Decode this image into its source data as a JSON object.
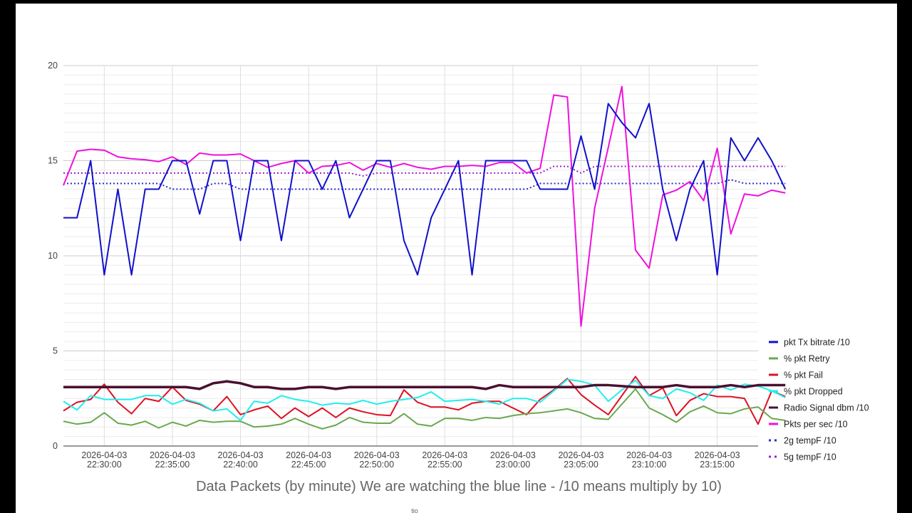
{
  "chart_data": {
    "type": "line",
    "title": "",
    "caption": "Data Packets  (by minute) We are watching the blue line -  /10 means multiply by 10)",
    "footer_text": "tio",
    "xlabel": "",
    "ylabel": "",
    "ylim": [
      0,
      20
    ],
    "yticks": [
      0,
      5,
      10,
      15,
      20
    ],
    "xlim": [
      0,
      51
    ],
    "x_ticks": [
      {
        "x": 3,
        "date": "2026-04-03",
        "time": "22:30:00"
      },
      {
        "x": 8,
        "date": "2026-04-03",
        "time": "22:35:00"
      },
      {
        "x": 13,
        "date": "2026-04-03",
        "time": "22:40:00"
      },
      {
        "x": 18,
        "date": "2026-04-03",
        "time": "22:45:00"
      },
      {
        "x": 23,
        "date": "2026-04-03",
        "time": "22:50:00"
      },
      {
        "x": 28,
        "date": "2026-04-03",
        "time": "22:55:00"
      },
      {
        "x": 33,
        "date": "2026-04-03",
        "time": "23:00:00"
      },
      {
        "x": 38,
        "date": "2026-04-03",
        "time": "23:05:00"
      },
      {
        "x": 43,
        "date": "2026-04-03",
        "time": "23:10:00"
      },
      {
        "x": 48,
        "date": "2026-04-03",
        "time": "23:15:00"
      }
    ],
    "grid": true,
    "legend_position": "right",
    "series": [
      {
        "name": "pkt Tx bitrate /10",
        "color": "#1010cc",
        "style": "solid",
        "width": 2,
        "values": [
          12,
          12,
          15,
          9,
          13.5,
          9,
          13.5,
          13.5,
          15,
          15,
          12.2,
          15,
          15,
          10.8,
          15,
          15,
          10.8,
          15,
          15,
          13.5,
          15,
          12,
          13.5,
          15,
          15,
          10.8,
          9,
          12,
          13.5,
          15,
          9,
          15,
          15,
          15,
          15,
          13.5,
          13.5,
          13.5,
          16.3,
          13.5,
          18,
          17,
          16.2,
          18,
          13.5,
          10.8,
          13.5,
          15,
          9,
          16.2,
          15,
          16.2,
          15,
          13.5
        ]
      },
      {
        "name": "% pkt Retry",
        "color": "#6aa84f",
        "style": "solid",
        "width": 2,
        "values": [
          1.3,
          1.15,
          1.25,
          1.75,
          1.2,
          1.1,
          1.3,
          0.95,
          1.25,
          1.05,
          1.35,
          1.25,
          1.3,
          1.3,
          1.0,
          1.05,
          1.15,
          1.45,
          1.15,
          0.9,
          1.1,
          1.5,
          1.25,
          1.2,
          1.2,
          1.7,
          1.15,
          1.05,
          1.45,
          1.45,
          1.35,
          1.5,
          1.45,
          1.6,
          1.7,
          1.75,
          1.85,
          1.95,
          1.75,
          1.45,
          1.4,
          2.2,
          3.0,
          2.0,
          1.65,
          1.25,
          1.8,
          2.1,
          1.75,
          1.7,
          1.95,
          2.05,
          1.45,
          1.35
        ]
      },
      {
        "name": "% pkt Fail",
        "color": "#dd1122",
        "style": "solid",
        "width": 2,
        "values": [
          1.85,
          2.3,
          2.45,
          3.25,
          2.3,
          1.7,
          2.5,
          2.35,
          3.1,
          2.4,
          2.2,
          1.85,
          2.6,
          1.65,
          1.9,
          2.1,
          1.45,
          2.0,
          1.55,
          2.0,
          1.5,
          2.0,
          1.8,
          1.65,
          1.6,
          2.95,
          2.3,
          2.05,
          2.05,
          1.9,
          2.25,
          2.35,
          2.35,
          2.0,
          1.65,
          2.45,
          2.95,
          3.55,
          2.7,
          2.15,
          1.65,
          2.65,
          3.65,
          2.65,
          3.05,
          1.6,
          2.4,
          2.75,
          2.6,
          2.6,
          2.5,
          1.15,
          2.9,
          2.6
        ]
      },
      {
        "name": "% pkt Dropped",
        "color": "#22eeee",
        "style": "solid",
        "width": 2,
        "values": [
          2.35,
          1.9,
          2.65,
          2.45,
          2.45,
          2.45,
          2.65,
          2.65,
          2.2,
          2.45,
          2.25,
          1.85,
          1.95,
          1.35,
          2.35,
          2.25,
          2.65,
          2.45,
          2.35,
          2.15,
          2.25,
          2.2,
          2.4,
          2.2,
          2.35,
          2.45,
          2.55,
          2.85,
          2.35,
          2.4,
          2.45,
          2.35,
          2.2,
          2.5,
          2.5,
          2.3,
          2.9,
          3.5,
          3.4,
          3.2,
          2.35,
          2.95,
          3.45,
          2.65,
          2.5,
          3.0,
          2.8,
          2.4,
          3.2,
          2.95,
          3.25,
          3.15,
          2.9,
          2.55
        ]
      },
      {
        "name": "Radio Signal dbm /10",
        "color": "#4a1030",
        "style": "solid",
        "width": 3.5,
        "values": [
          3.1,
          3.1,
          3.1,
          3.1,
          3.1,
          3.1,
          3.1,
          3.1,
          3.1,
          3.1,
          3.0,
          3.3,
          3.4,
          3.3,
          3.1,
          3.1,
          3.0,
          3.0,
          3.1,
          3.1,
          3.0,
          3.1,
          3.1,
          3.1,
          3.1,
          3.1,
          3.1,
          3.1,
          3.1,
          3.1,
          3.1,
          3.0,
          3.2,
          3.1,
          3.1,
          3.1,
          3.1,
          3.1,
          3.1,
          3.2,
          3.2,
          3.15,
          3.1,
          3.1,
          3.1,
          3.2,
          3.1,
          3.1,
          3.1,
          3.2,
          3.1,
          3.2,
          3.2,
          3.2
        ]
      },
      {
        "name": "Pkts per sec /10",
        "color": "#ee11dd",
        "style": "solid",
        "width": 2,
        "values": [
          13.7,
          15.5,
          15.6,
          15.55,
          15.2,
          15.1,
          15.05,
          14.95,
          15.2,
          14.8,
          15.4,
          15.3,
          15.3,
          15.35,
          15.0,
          14.65,
          14.85,
          15.0,
          14.35,
          14.7,
          14.75,
          14.9,
          14.5,
          14.85,
          14.65,
          14.85,
          14.65,
          14.55,
          14.7,
          14.7,
          14.75,
          14.7,
          14.9,
          14.9,
          14.35,
          14.6,
          18.45,
          18.35,
          6.3,
          12.5,
          15.7,
          18.9,
          10.3,
          9.35,
          13.2,
          13.45,
          13.9,
          12.9,
          15.65,
          11.15,
          13.25,
          13.15,
          13.45,
          13.3
        ]
      },
      {
        "name": "2g tempF /10",
        "color": "#2a2acc",
        "style": "dotted",
        "width": 2,
        "values": [
          13.8,
          13.8,
          13.8,
          13.8,
          13.8,
          13.8,
          13.8,
          13.8,
          13.5,
          13.5,
          13.5,
          13.8,
          13.8,
          13.5,
          13.5,
          13.5,
          13.5,
          13.5,
          13.5,
          13.5,
          13.5,
          13.5,
          13.5,
          13.5,
          13.5,
          13.5,
          13.5,
          13.5,
          13.5,
          13.5,
          13.5,
          13.5,
          13.5,
          13.5,
          13.5,
          13.8,
          13.8,
          13.8,
          13.8,
          13.8,
          13.8,
          13.8,
          13.8,
          13.8,
          13.8,
          13.8,
          13.8,
          13.8,
          13.8,
          14.0,
          13.8,
          13.8,
          13.8,
          13.8
        ]
      },
      {
        "name": "5g tempF /10",
        "color": "#9a22cc",
        "style": "dotted",
        "width": 2,
        "values": [
          14.35,
          14.35,
          14.35,
          14.35,
          14.35,
          14.35,
          14.35,
          14.35,
          14.35,
          14.35,
          14.35,
          14.35,
          14.35,
          14.35,
          14.35,
          14.35,
          14.35,
          14.35,
          14.35,
          14.35,
          14.35,
          14.35,
          14.2,
          14.35,
          14.35,
          14.35,
          14.35,
          14.35,
          14.35,
          14.35,
          14.35,
          14.35,
          14.35,
          14.35,
          14.35,
          14.35,
          14.7,
          14.7,
          14.35,
          14.7,
          14.7,
          14.7,
          14.7,
          14.7,
          14.7,
          14.7,
          14.7,
          14.7,
          14.7,
          14.7,
          14.7,
          14.7,
          14.7,
          14.7
        ]
      }
    ]
  }
}
